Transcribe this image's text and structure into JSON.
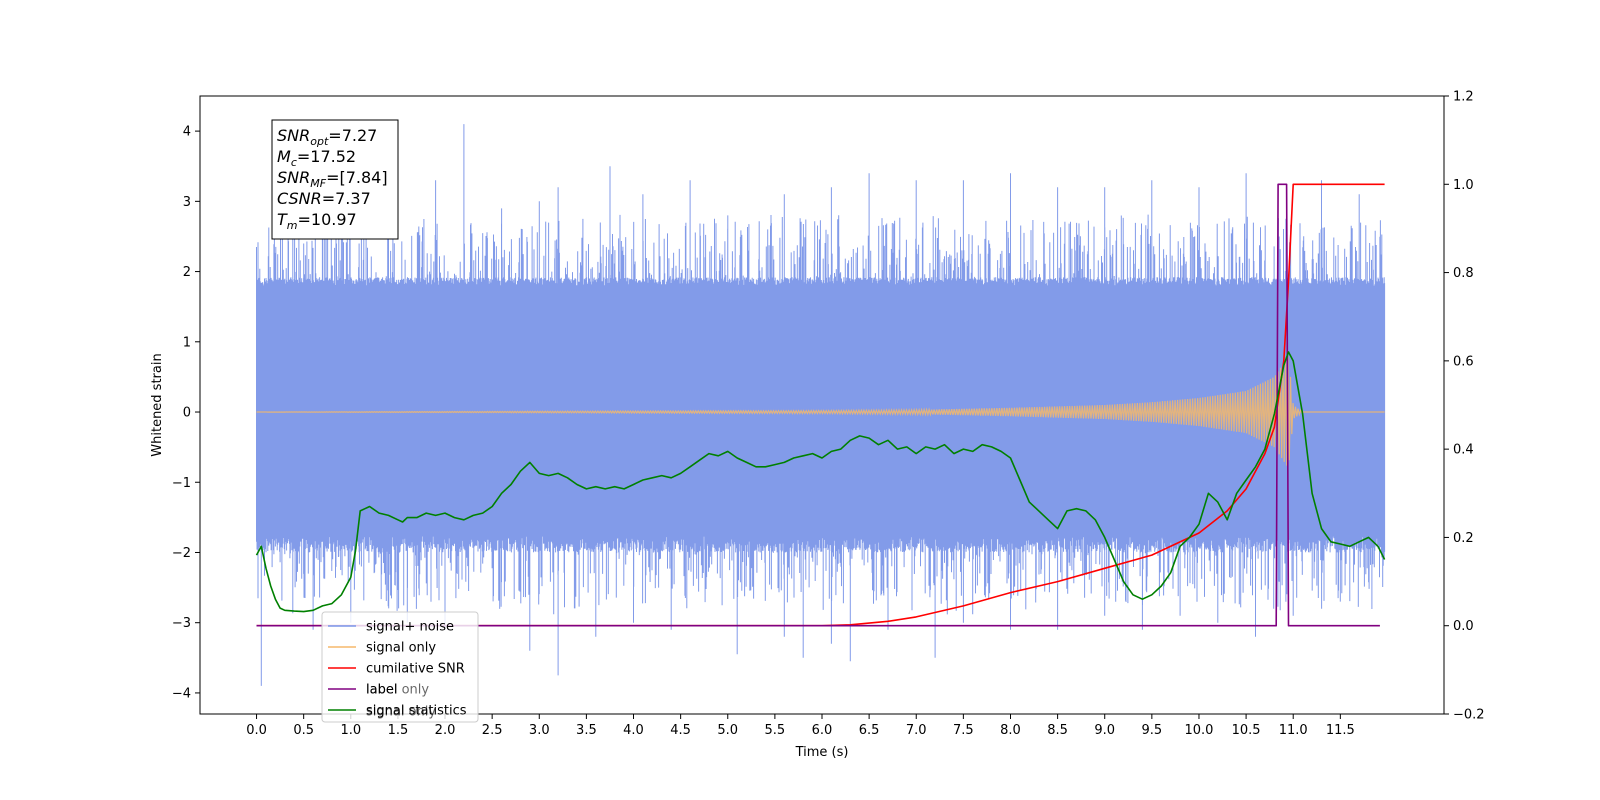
{
  "chart_data": {
    "type": "line",
    "xlabel": "Time (s)",
    "ylabel_left": "Whitened strain",
    "ylabel_right": "",
    "xlim": [
      -0.6,
      12.6
    ],
    "ylim_left": [
      -4.3,
      4.5
    ],
    "ylim_right": [
      -0.2,
      1.2
    ],
    "x_ticks": [
      0.0,
      0.5,
      1.0,
      1.5,
      2.0,
      2.5,
      3.0,
      3.5,
      4.0,
      4.5,
      5.0,
      5.5,
      6.0,
      6.5,
      7.0,
      7.5,
      8.0,
      8.5,
      9.0,
      9.5,
      10.0,
      10.5,
      11.0,
      11.5
    ],
    "x_tick_labels": [
      "0.0",
      "0.5",
      "1.0",
      "1.5",
      "2.0",
      "2.5",
      "3.0",
      "3.5",
      "4.0",
      "4.5",
      "5.0",
      "5.5",
      "6.0",
      "6.5",
      "7.0",
      "7.5",
      "8.0",
      "8.5",
      "9.0",
      "9.5",
      "10.0",
      "10.5",
      "11.0",
      "11.5"
    ],
    "y_left_ticks": [
      -4,
      -3,
      -2,
      -1,
      0,
      1,
      2,
      3,
      4
    ],
    "y_left_tick_labels": [
      "−4",
      "−3",
      "−2",
      "−1",
      "0",
      "1",
      "2",
      "3",
      "4"
    ],
    "y_right_ticks": [
      -0.2,
      0.0,
      0.2,
      0.4,
      0.6,
      0.8,
      1.0,
      1.2
    ],
    "y_right_tick_labels": [
      "−0.2",
      "0.0",
      "0.2",
      "0.4",
      "0.6",
      "0.8",
      "1.0",
      "1.2"
    ],
    "grid": false,
    "info_box": {
      "lines": [
        {
          "main": "SNR",
          "sub": "opt",
          "value": "=7.27"
        },
        {
          "main": "M",
          "sub": "c",
          "value": "=17.52"
        },
        {
          "main": "SNR",
          "sub": "MF",
          "value": "=[7.84]"
        },
        {
          "main": "CSNR",
          "sub": "",
          "value": "=7.37"
        },
        {
          "main": "T",
          "sub": "m",
          "value": "=10.97"
        }
      ]
    },
    "legend": {
      "placement": "lower-left",
      "entries": [
        {
          "label": "signal+ noise",
          "color": "#7b96e8"
        },
        {
          "label": "signal only",
          "color": "#f5b96b"
        },
        {
          "label": "cumilative SNR",
          "color": "#ff0000"
        },
        {
          "label": "label",
          "color": "#800080"
        },
        {
          "label": "signal statistics",
          "color": "#008000"
        }
      ],
      "hidden_labels": [
        "label only",
        "signal only"
      ]
    },
    "series": [
      {
        "name": "signal+ noise",
        "axis": "left",
        "color": "#7b96e8",
        "x_range": [
          0.0,
          11.97
        ],
        "band_upper_envelope": [
          1.8,
          2.0
        ],
        "band_lower_envelope": [
          -2.0,
          -1.6
        ],
        "spikes_up": [
          [
            0.0,
            2.35
          ],
          [
            0.5,
            2.4
          ],
          [
            0.9,
            3.0
          ],
          [
            1.4,
            3.0
          ],
          [
            1.9,
            3.3
          ],
          [
            2.2,
            4.1
          ],
          [
            2.6,
            2.9
          ],
          [
            3.0,
            3.0
          ],
          [
            3.2,
            3.2
          ],
          [
            3.75,
            3.5
          ],
          [
            4.1,
            3.1
          ],
          [
            4.6,
            3.3
          ],
          [
            5.0,
            2.8
          ],
          [
            5.6,
            3.1
          ],
          [
            6.1,
            3.2
          ],
          [
            6.5,
            3.4
          ],
          [
            7.0,
            3.3
          ],
          [
            7.5,
            3.3
          ],
          [
            8.0,
            3.4
          ],
          [
            8.5,
            3.2
          ],
          [
            9.0,
            3.2
          ],
          [
            9.5,
            3.3
          ],
          [
            10.0,
            3.2
          ],
          [
            10.5,
            3.4
          ],
          [
            10.85,
            2.5
          ],
          [
            11.3,
            3.3
          ],
          [
            11.7,
            3.1
          ]
        ],
        "spikes_down": [
          [
            0.05,
            -3.9
          ],
          [
            0.6,
            -3.1
          ],
          [
            1.0,
            -3.0
          ],
          [
            1.6,
            -3.0
          ],
          [
            2.0,
            -3.1
          ],
          [
            2.9,
            -3.4
          ],
          [
            3.2,
            -3.75
          ],
          [
            3.6,
            -3.2
          ],
          [
            4.0,
            -3.0
          ],
          [
            4.4,
            -3.1
          ],
          [
            5.1,
            -3.45
          ],
          [
            5.6,
            -3.2
          ],
          [
            5.8,
            -3.5
          ],
          [
            6.1,
            -3.3
          ],
          [
            6.3,
            -3.55
          ],
          [
            6.7,
            -3.1
          ],
          [
            7.2,
            -3.5
          ],
          [
            7.5,
            -3.0
          ],
          [
            8.0,
            -3.1
          ],
          [
            8.5,
            -3.1
          ],
          [
            9.0,
            -2.9
          ],
          [
            9.4,
            -3.1
          ],
          [
            9.8,
            -2.9
          ],
          [
            10.2,
            -3.0
          ],
          [
            10.6,
            -3.2
          ],
          [
            11.0,
            -2.9
          ],
          [
            11.5,
            -2.7
          ]
        ]
      },
      {
        "name": "signal only",
        "axis": "left",
        "color": "#f5b96b",
        "x_range": [
          0.0,
          11.97
        ],
        "envelope": [
          [
            0.0,
            0.0
          ],
          [
            6.0,
            0.02
          ],
          [
            7.0,
            0.03
          ],
          [
            8.0,
            0.06
          ],
          [
            9.0,
            0.1
          ],
          [
            9.5,
            0.14
          ],
          [
            10.0,
            0.2
          ],
          [
            10.5,
            0.3
          ],
          [
            10.8,
            0.5
          ],
          [
            10.95,
            0.8
          ],
          [
            11.0,
            0.1
          ],
          [
            11.1,
            0.0
          ],
          [
            11.97,
            0.0
          ]
        ]
      },
      {
        "name": "cumilative SNR",
        "axis": "right",
        "color": "#ff0000",
        "x": [
          0.0,
          6.0,
          6.3,
          6.7,
          7.0,
          7.5,
          8.0,
          8.5,
          9.0,
          9.5,
          10.0,
          10.3,
          10.5,
          10.7,
          10.8,
          10.9,
          10.95,
          11.0,
          11.05,
          11.97
        ],
        "y": [
          0.0,
          0.0,
          0.002,
          0.01,
          0.02,
          0.045,
          0.075,
          0.1,
          0.13,
          0.16,
          0.21,
          0.26,
          0.31,
          0.39,
          0.45,
          0.6,
          0.78,
          1.0,
          1.0,
          1.0
        ]
      },
      {
        "name": "label",
        "axis": "right",
        "color": "#800080",
        "x": [
          0.0,
          10.82,
          10.84,
          10.93,
          10.95,
          11.0,
          11.02,
          11.92
        ],
        "y": [
          0.0,
          0.0,
          1.0,
          1.0,
          0.0,
          0.0,
          0.0,
          0.0
        ]
      },
      {
        "name": "signal statistics",
        "axis": "right",
        "color": "#008000",
        "x": [
          0.0,
          0.05,
          0.1,
          0.15,
          0.2,
          0.25,
          0.3,
          0.4,
          0.5,
          0.6,
          0.7,
          0.8,
          0.9,
          1.0,
          1.05,
          1.1,
          1.15,
          1.2,
          1.3,
          1.4,
          1.5,
          1.55,
          1.6,
          1.7,
          1.8,
          1.9,
          2.0,
          2.1,
          2.2,
          2.3,
          2.4,
          2.5,
          2.6,
          2.7,
          2.8,
          2.9,
          3.0,
          3.1,
          3.2,
          3.3,
          3.4,
          3.5,
          3.6,
          3.7,
          3.8,
          3.9,
          4.0,
          4.1,
          4.2,
          4.3,
          4.4,
          4.5,
          4.6,
          4.7,
          4.8,
          4.9,
          5.0,
          5.1,
          5.2,
          5.3,
          5.4,
          5.5,
          5.6,
          5.7,
          5.8,
          5.9,
          6.0,
          6.1,
          6.2,
          6.3,
          6.4,
          6.5,
          6.6,
          6.7,
          6.8,
          6.9,
          7.0,
          7.1,
          7.2,
          7.3,
          7.4,
          7.5,
          7.6,
          7.7,
          7.8,
          7.9,
          8.0,
          8.1,
          8.2,
          8.3,
          8.4,
          8.5,
          8.6,
          8.7,
          8.8,
          8.9,
          9.0,
          9.1,
          9.2,
          9.3,
          9.4,
          9.5,
          9.6,
          9.7,
          9.8,
          9.9,
          10.0,
          10.1,
          10.2,
          10.3,
          10.4,
          10.5,
          10.6,
          10.7,
          10.8,
          10.9,
          10.95,
          11.0,
          11.1,
          11.2,
          11.3,
          11.4,
          11.5,
          11.6,
          11.7,
          11.8,
          11.9,
          11.97
        ],
        "y": [
          0.16,
          0.18,
          0.13,
          0.09,
          0.06,
          0.04,
          0.035,
          0.033,
          0.032,
          0.035,
          0.045,
          0.05,
          0.07,
          0.11,
          0.17,
          0.26,
          0.265,
          0.27,
          0.255,
          0.25,
          0.24,
          0.235,
          0.245,
          0.245,
          0.255,
          0.25,
          0.255,
          0.245,
          0.24,
          0.25,
          0.255,
          0.27,
          0.3,
          0.32,
          0.35,
          0.37,
          0.345,
          0.34,
          0.345,
          0.335,
          0.32,
          0.31,
          0.315,
          0.31,
          0.315,
          0.31,
          0.32,
          0.33,
          0.335,
          0.34,
          0.335,
          0.345,
          0.36,
          0.375,
          0.39,
          0.385,
          0.395,
          0.38,
          0.37,
          0.36,
          0.36,
          0.365,
          0.37,
          0.38,
          0.385,
          0.39,
          0.38,
          0.395,
          0.4,
          0.42,
          0.43,
          0.425,
          0.41,
          0.42,
          0.4,
          0.405,
          0.39,
          0.405,
          0.4,
          0.41,
          0.39,
          0.4,
          0.395,
          0.41,
          0.405,
          0.395,
          0.38,
          0.33,
          0.28,
          0.26,
          0.24,
          0.22,
          0.26,
          0.265,
          0.26,
          0.24,
          0.2,
          0.15,
          0.1,
          0.07,
          0.06,
          0.07,
          0.09,
          0.12,
          0.18,
          0.2,
          0.23,
          0.3,
          0.28,
          0.24,
          0.3,
          0.33,
          0.36,
          0.4,
          0.48,
          0.59,
          0.62,
          0.6,
          0.48,
          0.3,
          0.22,
          0.19,
          0.185,
          0.18,
          0.19,
          0.2,
          0.18,
          0.15
        ]
      }
    ]
  }
}
